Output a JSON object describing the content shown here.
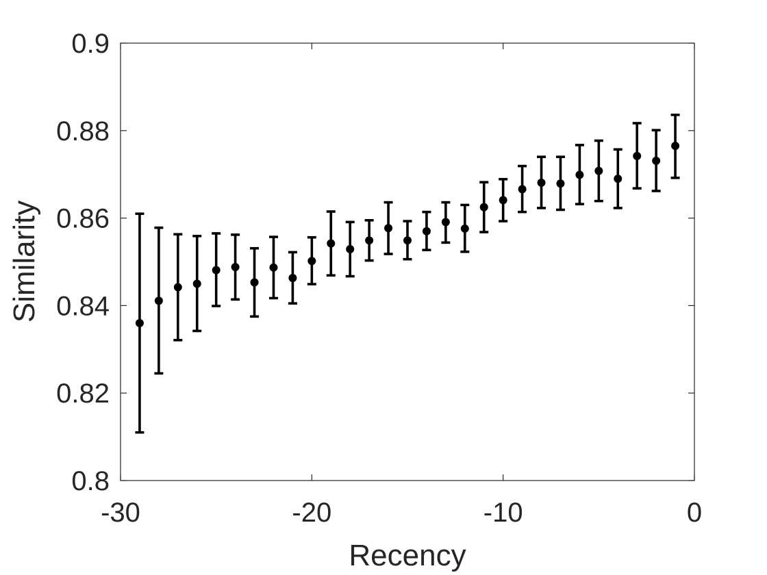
{
  "chart_data": {
    "type": "scatter",
    "title": "",
    "xlabel": "Recency",
    "ylabel": "Similarity",
    "xlim": [
      -30,
      0
    ],
    "ylim": [
      0.8,
      0.9
    ],
    "xticks": [
      -30,
      -20,
      -10,
      0
    ],
    "xtick_labels": [
      "-30",
      "-20",
      "-10",
      "0"
    ],
    "yticks": [
      0.8,
      0.82,
      0.84,
      0.86,
      0.88,
      0.9
    ],
    "ytick_labels": [
      "0.8",
      "0.82",
      "0.84",
      "0.86",
      "0.88",
      "0.9"
    ],
    "grid": false,
    "marker_color": "#000000",
    "series": [
      {
        "x": [
          -29,
          -28,
          -27,
          -26,
          -25,
          -24,
          -23,
          -22,
          -21,
          -20,
          -19,
          -18,
          -17,
          -16,
          -15,
          -14,
          -13,
          -12,
          -11,
          -10,
          -9,
          -8,
          -7,
          -6,
          -5,
          -4,
          -3,
          -2,
          -1
        ],
        "y": [
          0.836,
          0.8411,
          0.8442,
          0.845,
          0.8481,
          0.8488,
          0.8453,
          0.8487,
          0.8463,
          0.8502,
          0.8542,
          0.8529,
          0.8549,
          0.8577,
          0.8549,
          0.857,
          0.8591,
          0.8576,
          0.8625,
          0.8641,
          0.8666,
          0.8681,
          0.8679,
          0.8699,
          0.8708,
          0.869,
          0.8742,
          0.8731,
          0.8765
        ],
        "err_low": [
          0.811,
          0.8245,
          0.8321,
          0.8342,
          0.8399,
          0.8414,
          0.8375,
          0.8417,
          0.8405,
          0.8449,
          0.8469,
          0.8467,
          0.8503,
          0.8518,
          0.8506,
          0.8527,
          0.8544,
          0.8523,
          0.8568,
          0.8593,
          0.8614,
          0.8623,
          0.8619,
          0.8632,
          0.8639,
          0.8623,
          0.8668,
          0.8662,
          0.8692
        ],
        "err_high": [
          0.861,
          0.8578,
          0.8563,
          0.8559,
          0.8565,
          0.8562,
          0.8531,
          0.8557,
          0.8522,
          0.8556,
          0.8615,
          0.8591,
          0.8595,
          0.8636,
          0.8593,
          0.8614,
          0.8636,
          0.863,
          0.8682,
          0.8689,
          0.8719,
          0.874,
          0.874,
          0.8767,
          0.8777,
          0.8757,
          0.8817,
          0.8801,
          0.8836
        ]
      }
    ]
  }
}
